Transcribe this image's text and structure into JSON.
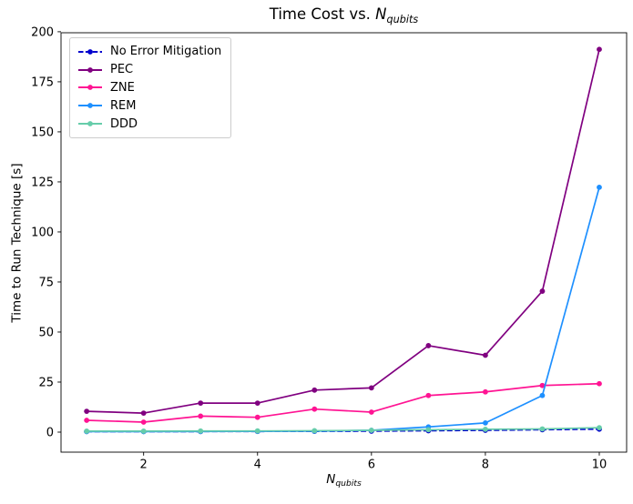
{
  "title": {
    "prefix": "Time Cost vs. ",
    "var": "N",
    "sub": "qubits"
  },
  "axes": {
    "xlabel_var": "N",
    "xlabel_sub": "qubits",
    "ylabel": "Time to Run Technique [s]",
    "xticks": [
      2,
      4,
      6,
      8,
      10
    ],
    "yticks": [
      0,
      25,
      50,
      75,
      100,
      125,
      150,
      175,
      200
    ],
    "xlim": [
      0.55,
      10.48
    ],
    "ylim": [
      -10,
      199.5
    ]
  },
  "chart_data": {
    "type": "line",
    "title": "Time Cost vs. N_qubits",
    "xlabel": "N_qubits",
    "ylabel": "Time to Run Technique [s]",
    "grid": false,
    "legend_position": "upper left",
    "x": [
      1,
      2,
      3,
      4,
      5,
      6,
      7,
      8,
      9,
      10
    ],
    "series": [
      {
        "name": "No Error Mitigation",
        "color": "#0000CD",
        "dash": "6,2.6",
        "values": [
          0.3,
          0.3,
          0.3,
          0.35,
          0.4,
          0.5,
          0.7,
          0.9,
          1.2,
          1.5
        ]
      },
      {
        "name": "PEC",
        "color": "#800080",
        "dash": null,
        "values": [
          10.4,
          9.5,
          14.5,
          14.5,
          21.0,
          22.1,
          43.2,
          38.4,
          70.4,
          191.2
        ]
      },
      {
        "name": "ZNE",
        "color": "#FF1493",
        "dash": null,
        "values": [
          5.9,
          5.0,
          8.0,
          7.4,
          11.5,
          10.0,
          18.3,
          20.1,
          23.3,
          24.2
        ]
      },
      {
        "name": "REM",
        "color": "#1E90FF",
        "dash": null,
        "values": [
          0.3,
          0.3,
          0.35,
          0.4,
          0.5,
          0.9,
          2.6,
          4.6,
          18.3,
          122.3
        ]
      },
      {
        "name": "DDD",
        "color": "#66CDAA",
        "dash": null,
        "values": [
          0.5,
          0.5,
          0.55,
          0.6,
          0.7,
          0.9,
          1.2,
          1.4,
          1.6,
          2.2
        ]
      }
    ]
  }
}
